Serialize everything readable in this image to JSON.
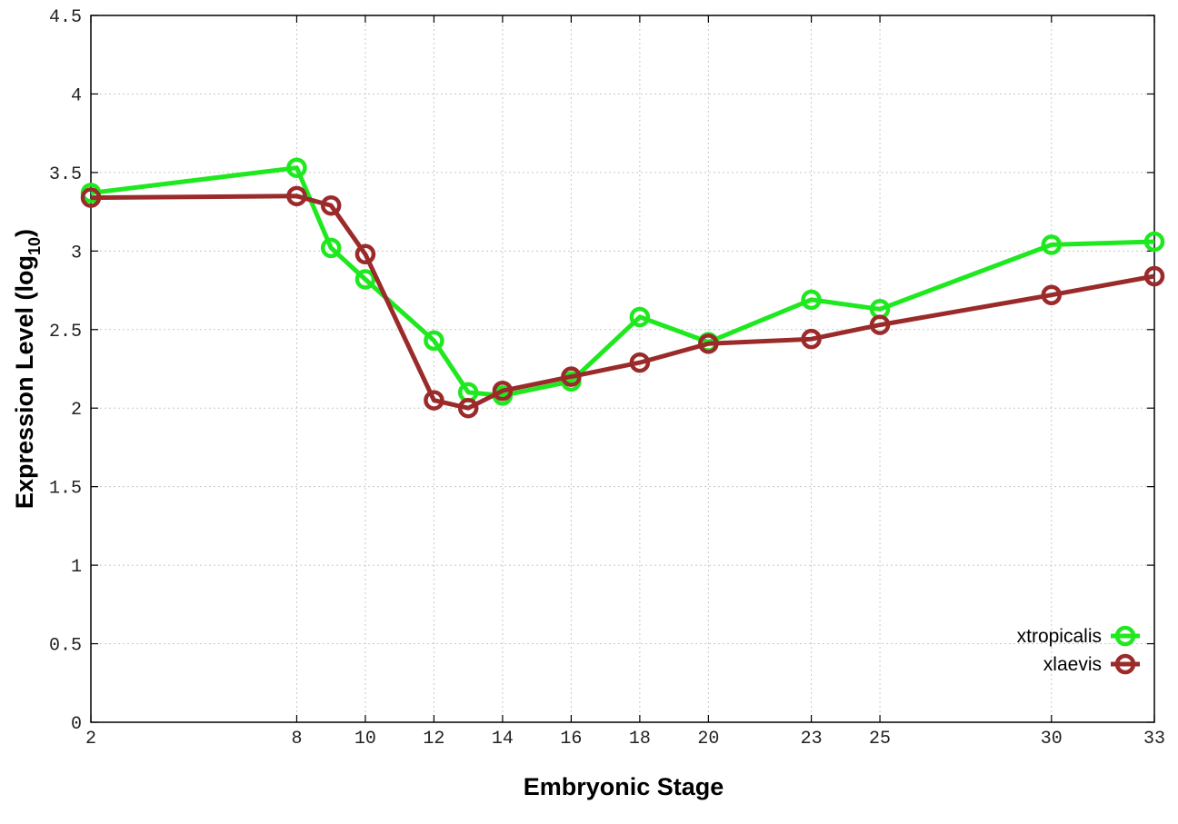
{
  "chart_data": {
    "type": "line",
    "xlabel": "Embryonic Stage",
    "ylabel_main": "Expression Level (log",
    "ylabel_sub": "10",
    "ylabel_close": ")",
    "xlim": [
      2,
      33
    ],
    "ylim": [
      0,
      4.5
    ],
    "x_ticks": [
      2,
      8,
      10,
      12,
      14,
      16,
      18,
      20,
      23,
      25,
      30,
      33
    ],
    "y_ticks": [
      0,
      0.5,
      1,
      1.5,
      2,
      2.5,
      3,
      3.5,
      4,
      4.5
    ],
    "y_tick_labels": [
      "0",
      "0.5",
      "1",
      "1.5",
      "2",
      "2.5",
      "3",
      "3.5",
      "4",
      "4.5"
    ],
    "grid": true,
    "legend_position": "bottom-right",
    "x": [
      2,
      8,
      9,
      10,
      12,
      13,
      14,
      16,
      18,
      20,
      23,
      25,
      30,
      33
    ],
    "series": [
      {
        "name": "xtropicalis",
        "color": "#1ee81e",
        "values": [
          3.37,
          3.53,
          3.02,
          2.82,
          2.43,
          2.1,
          2.08,
          2.17,
          2.58,
          2.42,
          2.69,
          2.63,
          3.04,
          3.06
        ]
      },
      {
        "name": "xlaevis",
        "color": "#9b2a2a",
        "values": [
          3.34,
          3.35,
          3.29,
          2.98,
          2.05,
          2.0,
          2.11,
          2.2,
          2.29,
          2.41,
          2.44,
          2.53,
          2.72,
          2.84
        ]
      }
    ]
  }
}
